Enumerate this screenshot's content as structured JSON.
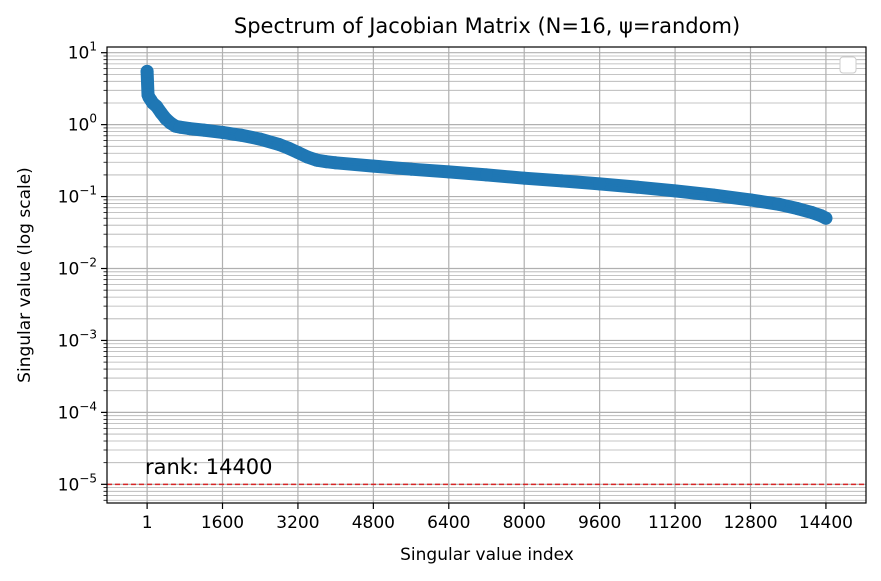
{
  "chart_data": {
    "type": "scatter",
    "title": "Spectrum of Jacobian Matrix (N=16, ψ=random)",
    "xlabel": "Singular value index",
    "ylabel": "Singular value (log scale)",
    "yscale": "log",
    "xlim": [
      -850,
      15250
    ],
    "ylim": [
      5.5e-06,
      12
    ],
    "grid": {
      "major": true,
      "minor_y": true
    },
    "legend": {
      "placement": "top-right",
      "entries": []
    },
    "x_ticks": [
      {
        "value": 1,
        "label": "1"
      },
      {
        "value": 1600,
        "label": "1600"
      },
      {
        "value": 3200,
        "label": "3200"
      },
      {
        "value": 4800,
        "label": "4800"
      },
      {
        "value": 6400,
        "label": "6400"
      },
      {
        "value": 8000,
        "label": "8000"
      },
      {
        "value": 9600,
        "label": "9600"
      },
      {
        "value": 11200,
        "label": "11200"
      },
      {
        "value": 12800,
        "label": "12800"
      },
      {
        "value": 14400,
        "label": "14400"
      }
    ],
    "y_ticks": [
      {
        "exp": -5,
        "base": "10",
        "sup": "−5"
      },
      {
        "exp": -4,
        "base": "10",
        "sup": "−4"
      },
      {
        "exp": -3,
        "base": "10",
        "sup": "−3"
      },
      {
        "exp": -2,
        "base": "10",
        "sup": "−2"
      },
      {
        "exp": -1,
        "base": "10",
        "sup": "−1"
      },
      {
        "exp": 0,
        "base": "10",
        "sup": "0"
      },
      {
        "exp": 1,
        "base": "10",
        "sup": "1"
      }
    ],
    "series": [
      {
        "color": "#1f77b4",
        "marker": "circle",
        "points": [
          [
            1,
            5.5
          ],
          [
            20,
            2.6
          ],
          [
            40,
            2.4
          ],
          [
            80,
            2.2
          ],
          [
            120,
            2.0
          ],
          [
            200,
            1.8
          ],
          [
            300,
            1.45
          ],
          [
            400,
            1.2
          ],
          [
            500,
            1.05
          ],
          [
            600,
            0.95
          ],
          [
            700,
            0.92
          ],
          [
            900,
            0.88
          ],
          [
            1200,
            0.84
          ],
          [
            1600,
            0.78
          ],
          [
            2000,
            0.71
          ],
          [
            2400,
            0.63
          ],
          [
            2800,
            0.53
          ],
          [
            3000,
            0.47
          ],
          [
            3200,
            0.41
          ],
          [
            3400,
            0.355
          ],
          [
            3600,
            0.32
          ],
          [
            3800,
            0.305
          ],
          [
            4000,
            0.295
          ],
          [
            4800,
            0.265
          ],
          [
            5600,
            0.24
          ],
          [
            6400,
            0.22
          ],
          [
            7200,
            0.2
          ],
          [
            8000,
            0.18
          ],
          [
            8800,
            0.165
          ],
          [
            9600,
            0.15
          ],
          [
            10400,
            0.135
          ],
          [
            11200,
            0.12
          ],
          [
            12000,
            0.105
          ],
          [
            12800,
            0.09
          ],
          [
            13400,
            0.078
          ],
          [
            13800,
            0.068
          ],
          [
            14100,
            0.06
          ],
          [
            14300,
            0.054
          ],
          [
            14400,
            0.05
          ]
        ]
      }
    ],
    "threshold": {
      "value": 1e-05,
      "color": "#d62728",
      "style": "dashed"
    },
    "annotation": "rank: 14400"
  }
}
